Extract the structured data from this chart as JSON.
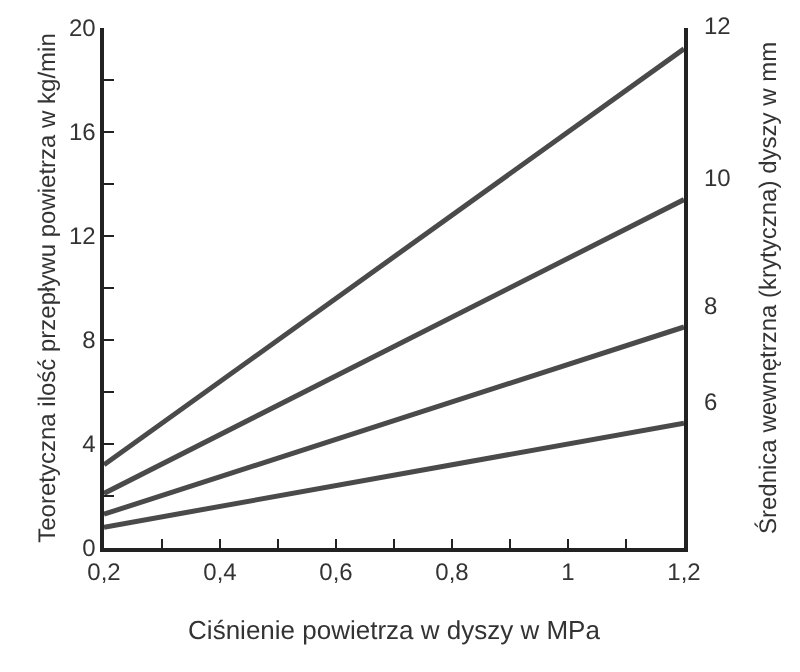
{
  "chart_data": {
    "type": "line",
    "xlabel": "Ciśnienie powietrza w dyszy w MPa",
    "ylabel": "Teoretyczna ilość przepływu powietrza w kg/min",
    "y2label": "Średnica wewnętrzna (krytyczna) dyszy w mm",
    "x": [
      0.2,
      1.2
    ],
    "series": [
      {
        "name": "12",
        "color": "#4a4a4a",
        "values": [
          3.2,
          19.2
        ]
      },
      {
        "name": "10",
        "color": "#4a4a4a",
        "values": [
          2.1,
          13.4
        ]
      },
      {
        "name": "8",
        "color": "#4a4a4a",
        "values": [
          1.3,
          8.5
        ]
      },
      {
        "name": "6",
        "color": "#4a4a4a",
        "values": [
          0.8,
          4.8
        ]
      }
    ],
    "xlim": [
      0.2,
      1.2
    ],
    "ylim": [
      0,
      20
    ],
    "xticks": [
      {
        "value": 0.2,
        "label": "0,2"
      },
      {
        "value": 0.3,
        "label": null
      },
      {
        "value": 0.4,
        "label": "0,4"
      },
      {
        "value": 0.5,
        "label": null
      },
      {
        "value": 0.6,
        "label": "0,6"
      },
      {
        "value": 0.7,
        "label": null
      },
      {
        "value": 0.8,
        "label": "0,8"
      },
      {
        "value": 0.9,
        "label": null
      },
      {
        "value": 1,
        "label": "1"
      },
      {
        "value": 1.1,
        "label": null
      },
      {
        "value": 1.2,
        "label": "1,2"
      }
    ],
    "yticks": [
      0,
      {
        "value": 2,
        "label": null
      },
      4,
      {
        "value": 6,
        "label": null
      },
      8,
      {
        "value": 10,
        "label": null
      },
      12,
      {
        "value": 14,
        "label": null
      },
      16,
      {
        "value": 18,
        "label": null
      },
      20
    ],
    "legend": false,
    "marker": "none",
    "line_style": "solid"
  }
}
